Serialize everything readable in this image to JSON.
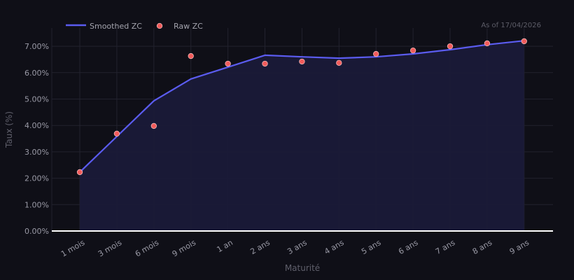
{
  "header": {
    "as_of": "As of 17/04/2026"
  },
  "legend": {
    "smoothed_label": "Smoothed ZC",
    "raw_label": "Raw ZC"
  },
  "colors": {
    "background": "#0f0f17",
    "smoothed_line": "#5b5cf0",
    "area_fill": "#1a1a38",
    "raw_marker": "#f25c5c",
    "raw_marker_edge": "#f5c6c6",
    "grid": "#22222e",
    "baseline": "#ffffff"
  },
  "chart_data": {
    "type": "line",
    "title": "",
    "xlabel": "Maturité",
    "ylabel": "Taux (%)",
    "categories": [
      "1 mois",
      "3 mois",
      "6 mois",
      "9 mois",
      "1 an",
      "2 ans",
      "3 ans",
      "4 ans",
      "5 ans",
      "6 ans",
      "7 ans",
      "8 ans",
      "9 ans"
    ],
    "series": [
      {
        "name": "Smoothed ZC",
        "style": "line+area",
        "values": [
          2.23,
          3.58,
          4.93,
          5.76,
          6.21,
          6.66,
          6.6,
          6.55,
          6.6,
          6.71,
          6.87,
          7.06,
          7.21
        ]
      },
      {
        "name": "Raw ZC",
        "style": "scatter",
        "values": [
          2.23,
          3.69,
          3.98,
          6.63,
          6.34,
          6.34,
          6.42,
          6.37,
          6.71,
          6.84,
          7.0,
          7.11,
          7.19
        ]
      }
    ],
    "yticks": [
      "0.00%",
      "1.00%",
      "2.00%",
      "3.00%",
      "4.00%",
      "5.00%",
      "6.00%",
      "7.00%"
    ],
    "ylim": [
      0,
      7.7
    ],
    "grid": true,
    "legend_position": "top-left",
    "annotation": "As of 17/04/2026"
  }
}
